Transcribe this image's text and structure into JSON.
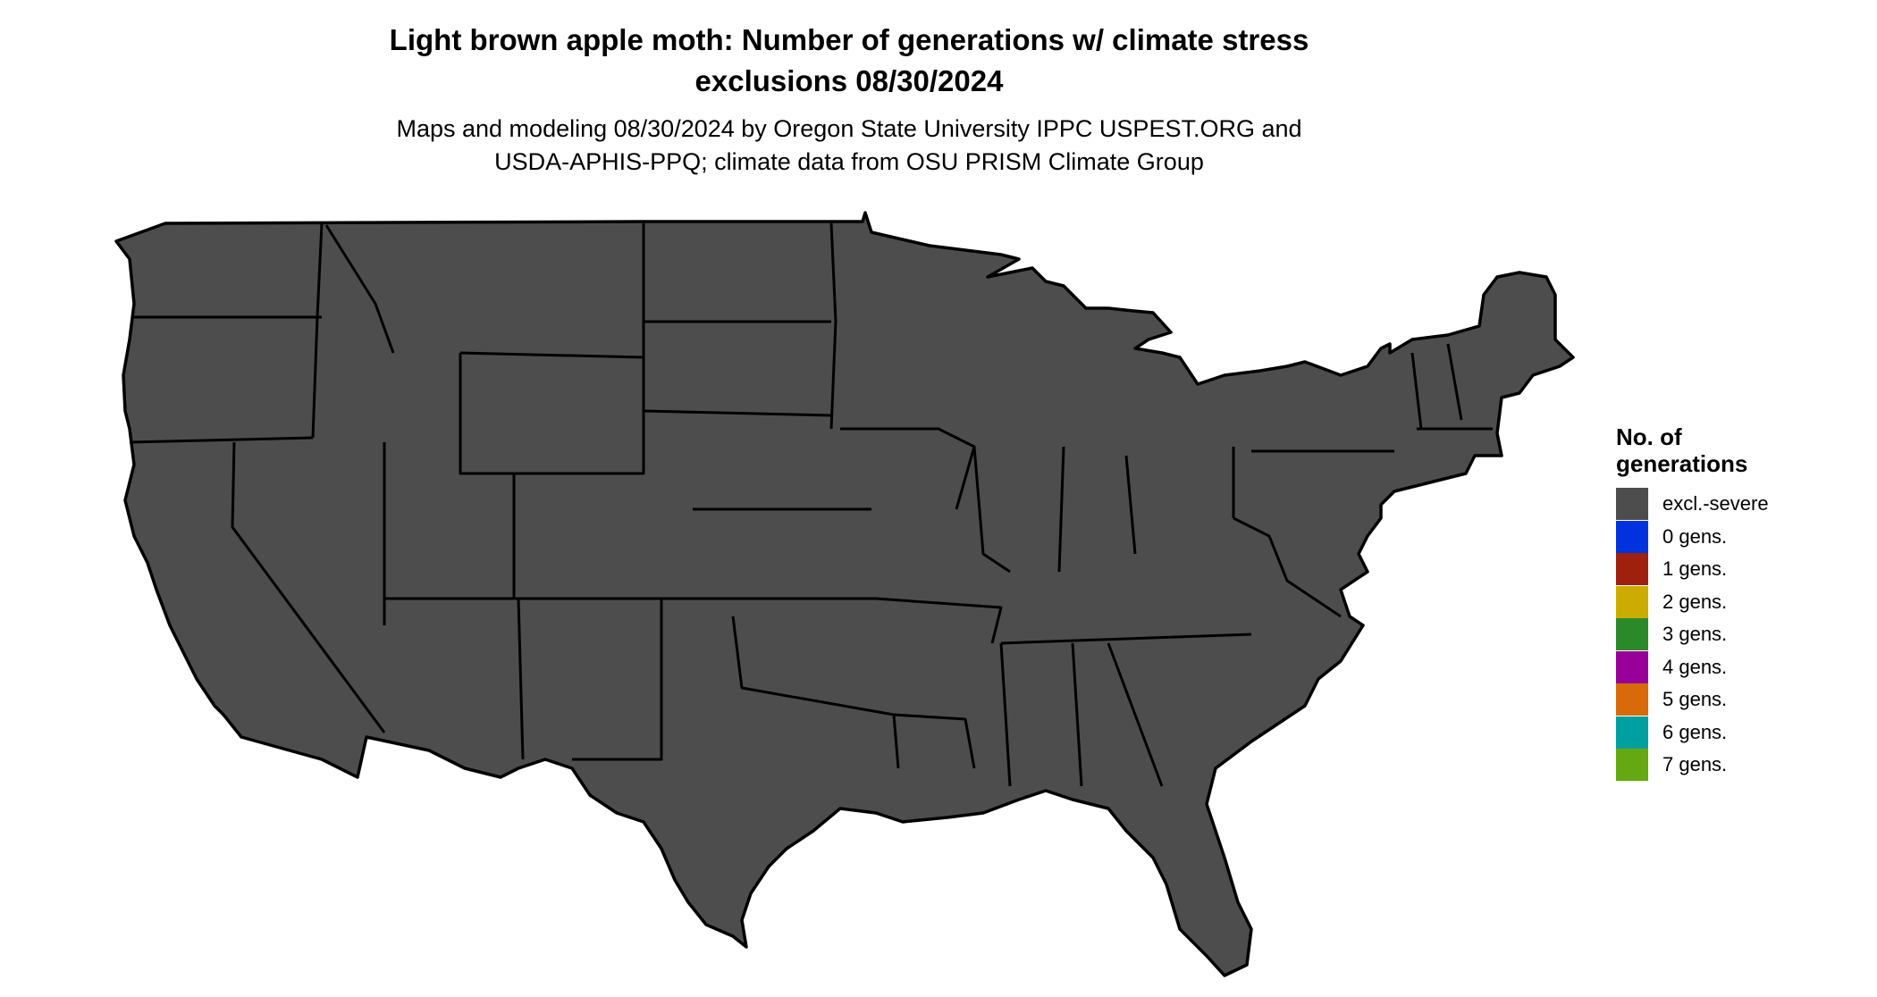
{
  "title": {
    "line1": "Light brown apple moth: Number of generations w/ climate stress",
    "line2": "exclusions 08/30/2024"
  },
  "subtitle": {
    "line1": "Maps and modeling 08/30/2024 by Oregon State University IPPC USPEST.ORG and",
    "line2": "USDA-APHIS-PPQ; climate data from OSU PRISM Climate Group"
  },
  "legend": {
    "title_line1": "No. of",
    "title_line2": "generations",
    "items": [
      {
        "label": "excl.-severe",
        "color": "#4d4d4d"
      },
      {
        "label": "0 gens.",
        "color": "#0033dd"
      },
      {
        "label": "1 gens.",
        "color": "#a02010"
      },
      {
        "label": "2 gens.",
        "color": "#ccac00"
      },
      {
        "label": "3 gens.",
        "color": "#2a8a2a"
      },
      {
        "label": "4 gens.",
        "color": "#990099"
      },
      {
        "label": "5 gens.",
        "color": "#d96a0a"
      },
      {
        "label": "6 gens.",
        "color": "#00a0a0"
      },
      {
        "label": "7 gens.",
        "color": "#66a811"
      }
    ]
  },
  "map_colors": {
    "excluded": "#4d4d4d",
    "gen1": "#a02010",
    "gen2": "#ccac00",
    "gen3_dark": "#006400",
    "gen3_light": "#66e07a",
    "gen4": "#8b008b",
    "gen4_edge": "#ff33ff",
    "gen5": "#cc6600",
    "gen5_light": "#e8a050",
    "gen6": "#00a0a0",
    "gen6_light": "#33ffff",
    "boundary": "#000000",
    "lake": "#ffffff"
  }
}
